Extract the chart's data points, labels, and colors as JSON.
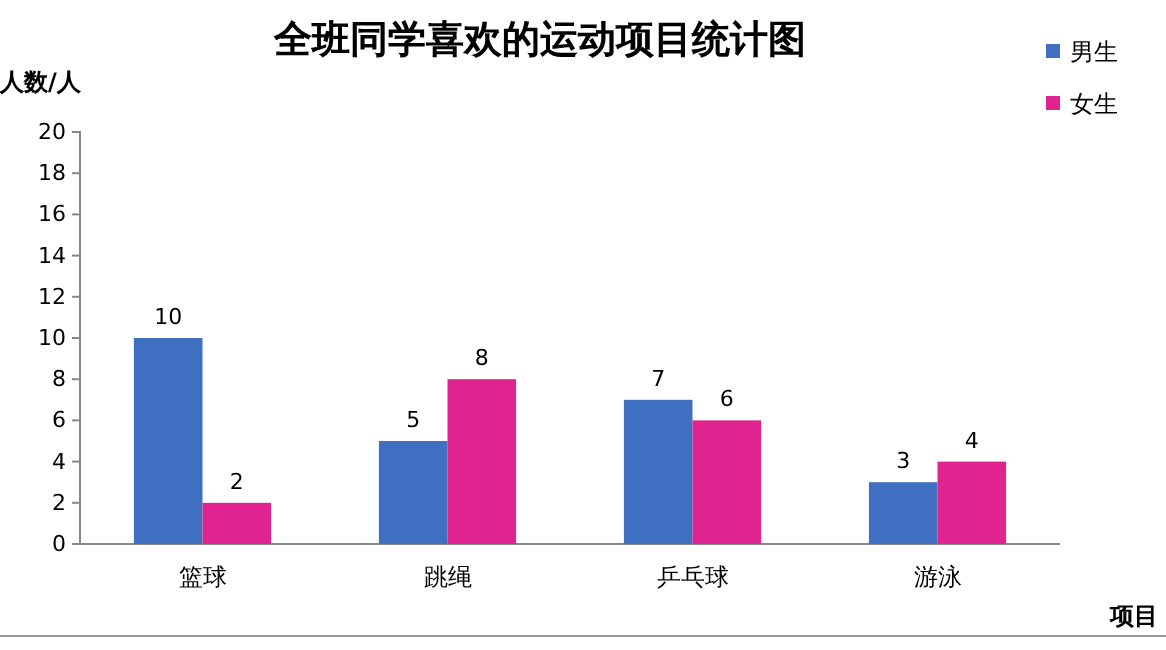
{
  "chart_data": {
    "type": "bar",
    "title": "全班同学喜欢的运动项目统计图",
    "xlabel": "项目",
    "ylabel": "人数/人",
    "categories": [
      "篮球",
      "跳绳",
      "乒乓球",
      "游泳"
    ],
    "series": [
      {
        "name": "男生",
        "color": "#3f6fc1",
        "values": [
          10,
          5,
          7,
          3
        ]
      },
      {
        "name": "女生",
        "color": "#e0248f",
        "values": [
          2,
          8,
          6,
          4
        ]
      }
    ],
    "ylim": [
      0,
      20
    ],
    "yticks": [
      0,
      2,
      4,
      6,
      8,
      10,
      12,
      14,
      16,
      18,
      20
    ],
    "data_labels": true,
    "legend": "top right",
    "grid": false
  }
}
